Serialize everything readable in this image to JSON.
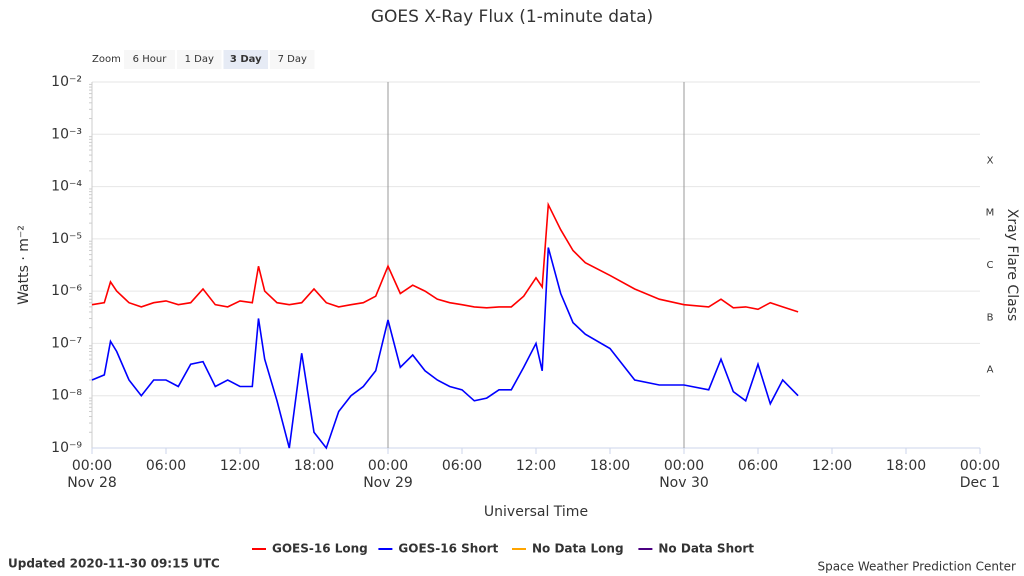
{
  "chart_data": {
    "type": "line",
    "title": "GOES X-Ray Flux (1-minute data)",
    "zoom": {
      "label": "Zoom",
      "options": [
        "6 Hour",
        "1 Day",
        "3 Day",
        "7 Day"
      ],
      "selected": "3 Day"
    },
    "y_label": "Watts · m⁻²",
    "x_label": "Universal Time",
    "y2_label": "Xray Flare Class",
    "log_scale": true,
    "grid": true,
    "ylim": [
      1e-09,
      0.01
    ],
    "yticks": [
      {
        "value": 0.01,
        "label": "10⁻²"
      },
      {
        "value": 0.001,
        "label": "10⁻³"
      },
      {
        "value": 0.0001,
        "label": "10⁻⁴"
      },
      {
        "value": 1e-05,
        "label": "10⁻⁵"
      },
      {
        "value": 1e-06,
        "label": "10⁻⁶"
      },
      {
        "value": 1e-07,
        "label": "10⁻⁷"
      },
      {
        "value": 1e-08,
        "label": "10⁻⁸"
      },
      {
        "value": 1e-09,
        "label": "10⁻⁹"
      }
    ],
    "flare_classes": [
      {
        "label": "A",
        "value": 1e-08
      },
      {
        "label": "B",
        "value": 1e-07
      },
      {
        "label": "C",
        "value": 1e-06
      },
      {
        "label": "M",
        "value": 1e-05
      },
      {
        "label": "X",
        "value": 0.0001
      }
    ],
    "xlim": [
      "Nov 28 00:00",
      "Dec 1 00:00"
    ],
    "xticks": [
      {
        "value": "Nov 28 00:00",
        "label": "00:00",
        "date": "Nov 28"
      },
      {
        "value": "Nov 28 06:00",
        "label": "06:00"
      },
      {
        "value": "Nov 28 12:00",
        "label": "12:00"
      },
      {
        "value": "Nov 28 18:00",
        "label": "18:00"
      },
      {
        "value": "Nov 29 00:00",
        "label": "00:00",
        "date": "Nov 29"
      },
      {
        "value": "Nov 29 06:00",
        "label": "06:00"
      },
      {
        "value": "Nov 29 12:00",
        "label": "12:00"
      },
      {
        "value": "Nov 29 18:00",
        "label": "18:00"
      },
      {
        "value": "Nov 30 00:00",
        "label": "00:00",
        "date": "Nov 30"
      },
      {
        "value": "Nov 30 06:00",
        "label": "06:00"
      },
      {
        "value": "Nov 30 12:00",
        "label": "12:00"
      },
      {
        "value": "Nov 30 18:00",
        "label": "18:00"
      },
      {
        "value": "Dec 1 00:00",
        "label": "00:00",
        "date": "Dec 1"
      }
    ],
    "x": [
      "Nov 28 00:00",
      "Nov 28 01:00",
      "Nov 28 01:30",
      "Nov 28 02:00",
      "Nov 28 03:00",
      "Nov 28 04:00",
      "Nov 28 05:00",
      "Nov 28 06:00",
      "Nov 28 07:00",
      "Nov 28 08:00",
      "Nov 28 09:00",
      "Nov 28 10:00",
      "Nov 28 11:00",
      "Nov 28 12:00",
      "Nov 28 13:00",
      "Nov 28 13:30",
      "Nov 28 14:00",
      "Nov 28 15:00",
      "Nov 28 16:00",
      "Nov 28 17:00",
      "Nov 28 18:00",
      "Nov 28 19:00",
      "Nov 28 20:00",
      "Nov 28 21:00",
      "Nov 28 22:00",
      "Nov 28 23:00",
      "Nov 29 00:00",
      "Nov 29 01:00",
      "Nov 29 02:00",
      "Nov 29 03:00",
      "Nov 29 04:00",
      "Nov 29 05:00",
      "Nov 29 06:00",
      "Nov 29 07:00",
      "Nov 29 08:00",
      "Nov 29 09:00",
      "Nov 29 10:00",
      "Nov 29 11:00",
      "Nov 29 12:00",
      "Nov 29 12:30",
      "Nov 29 13:00",
      "Nov 29 14:00",
      "Nov 29 15:00",
      "Nov 29 16:00",
      "Nov 29 18:00",
      "Nov 29 20:00",
      "Nov 29 22:00",
      "Nov 30 00:00",
      "Nov 30 02:00",
      "Nov 30 03:00",
      "Nov 30 04:00",
      "Nov 30 05:00",
      "Nov 30 06:00",
      "Nov 30 07:00",
      "Nov 30 08:00",
      "Nov 30 09:15"
    ],
    "series": [
      {
        "name": "GOES-16 Long",
        "color": "#ff0000",
        "values": [
          5.5e-07,
          6e-07,
          1.5e-06,
          1e-06,
          6e-07,
          5e-07,
          6e-07,
          6.5e-07,
          5.5e-07,
          6e-07,
          1.1e-06,
          5.5e-07,
          5e-07,
          6.5e-07,
          6e-07,
          3e-06,
          1e-06,
          6e-07,
          5.5e-07,
          6e-07,
          1.1e-06,
          6e-07,
          5e-07,
          5.5e-07,
          6e-07,
          8e-07,
          3e-06,
          9e-07,
          1.3e-06,
          1e-06,
          7e-07,
          6e-07,
          5.5e-07,
          5e-07,
          4.8e-07,
          5e-07,
          5e-07,
          8e-07,
          1.8e-06,
          1.2e-06,
          4.5e-05,
          1.5e-05,
          6e-06,
          3.5e-06,
          2e-06,
          1.1e-06,
          7e-07,
          5.5e-07,
          5e-07,
          7e-07,
          4.8e-07,
          5e-07,
          4.5e-07,
          6e-07,
          5e-07,
          4e-07
        ]
      },
      {
        "name": "GOES-16 Short",
        "color": "#0000ff",
        "values": [
          2e-08,
          2.5e-08,
          1.1e-07,
          7e-08,
          2e-08,
          1e-08,
          2e-08,
          2e-08,
          1.5e-08,
          4e-08,
          4.5e-08,
          1.5e-08,
          2e-08,
          1.5e-08,
          1.5e-08,
          3e-07,
          5e-08,
          8e-09,
          1e-09,
          6.5e-08,
          2e-09,
          1e-09,
          5e-09,
          1e-08,
          1.5e-08,
          3e-08,
          2.8e-07,
          3.5e-08,
          6e-08,
          3e-08,
          2e-08,
          1.5e-08,
          1.3e-08,
          8e-09,
          9e-09,
          1.3e-08,
          1.3e-08,
          3.5e-08,
          1e-07,
          3e-08,
          6.8e-06,
          9e-07,
          2.5e-07,
          1.5e-07,
          8e-08,
          2e-08,
          1.6e-08,
          1.6e-08,
          1.3e-08,
          5e-08,
          1.2e-08,
          8e-09,
          4e-08,
          7e-09,
          2e-08,
          1e-08
        ]
      }
    ],
    "legend_extra": [
      {
        "name": "No Data Long",
        "color": "#ffa500"
      },
      {
        "name": "No Data Short",
        "color": "#4b0082"
      }
    ],
    "updated": "Updated 2020-11-30 09:15 UTC",
    "credit": "Space Weather Prediction Center"
  }
}
